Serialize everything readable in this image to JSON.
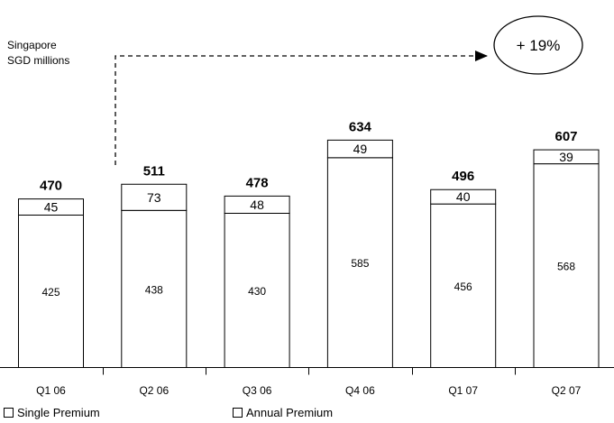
{
  "caption": {
    "line1": "Singapore",
    "line2": "SGD millions"
  },
  "callout": {
    "text": "+ 19%"
  },
  "legend": {
    "items": [
      {
        "label": "Single Premium"
      },
      {
        "label": "Annual Premium"
      }
    ]
  },
  "chart_data": {
    "type": "bar",
    "stacked": true,
    "categories": [
      "Q1 06",
      "Q2 06",
      "Q3 06",
      "Q4 06",
      "Q1 07",
      "Q2 07"
    ],
    "series": [
      {
        "name": "Single Premium",
        "values": [
          425,
          438,
          430,
          585,
          456,
          568
        ]
      },
      {
        "name": "Annual Premium",
        "values": [
          45,
          73,
          48,
          49,
          40,
          39
        ]
      }
    ],
    "totals": [
      470,
      511,
      478,
      634,
      496,
      607
    ],
    "annotation": "+ 19%",
    "ylim": [
      0,
      700
    ],
    "grid": false,
    "legend_position": "bottom-left"
  }
}
